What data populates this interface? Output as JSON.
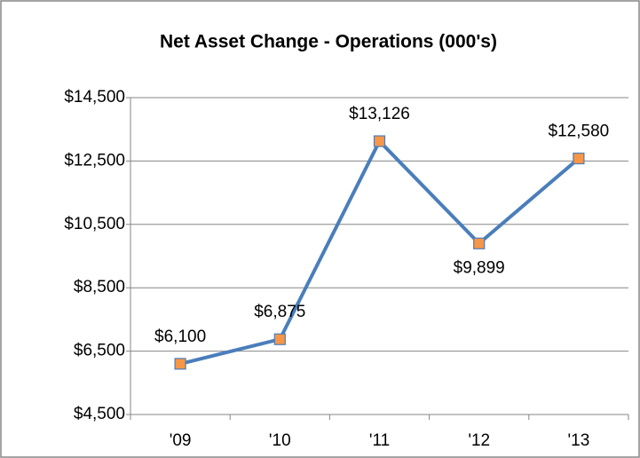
{
  "chart_data": {
    "type": "line",
    "title": "Net Asset Change - Operations (000's)",
    "categories": [
      "'09",
      "'10",
      "'11",
      "'12",
      "'13"
    ],
    "series": [
      {
        "name": "Net Asset Change",
        "color": "#4a7ebb",
        "marker_color": "#f79646",
        "values": [
          6100,
          6875,
          13126,
          9899,
          12580
        ],
        "value_labels": [
          "$6,100",
          "$6,875",
          "$13,126",
          "$9,899",
          "$12,580"
        ]
      }
    ],
    "ylim": [
      4500,
      14500
    ],
    "yticks": [
      {
        "value": 4500,
        "label": "$4,500"
      },
      {
        "value": 6500,
        "label": "$6,500"
      },
      {
        "value": 8500,
        "label": "$8,500"
      },
      {
        "value": 10500,
        "label": "$10,500"
      },
      {
        "value": 12500,
        "label": "$12,500"
      },
      {
        "value": 14500,
        "label": "$14,500"
      }
    ],
    "grid": true
  }
}
